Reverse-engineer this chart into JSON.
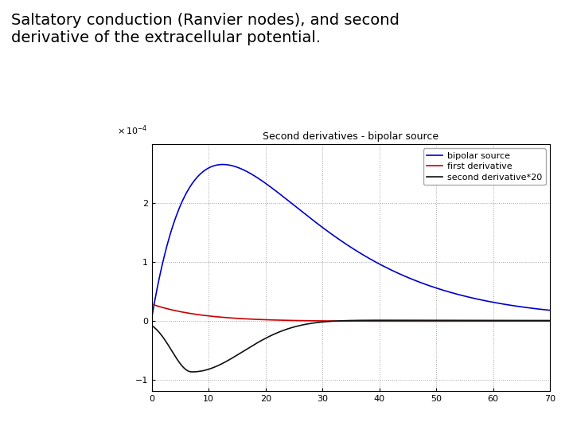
{
  "title_main": "Saltatory conduction (Ranvier nodes), and second\nderivative of the extracellular potential.",
  "plot_title": "Second derivatives - bipolar source",
  "xlim": [
    0,
    70
  ],
  "ylim": [
    -1.2,
    3.0
  ],
  "yticks": [
    -1,
    0,
    1,
    2
  ],
  "xticks": [
    0,
    10,
    20,
    30,
    40,
    50,
    60,
    70
  ],
  "legend_labels": [
    "bipolar source",
    "first derivative",
    "second derivative*20"
  ],
  "line_colors": [
    "#0000cc",
    "#cc0000",
    "#111111"
  ],
  "bg_color": "#ffffff",
  "grid_color": "#999999",
  "title_fontsize": 14,
  "plot_title_fontsize": 9,
  "legend_fontsize": 8,
  "tick_fontsize": 8
}
